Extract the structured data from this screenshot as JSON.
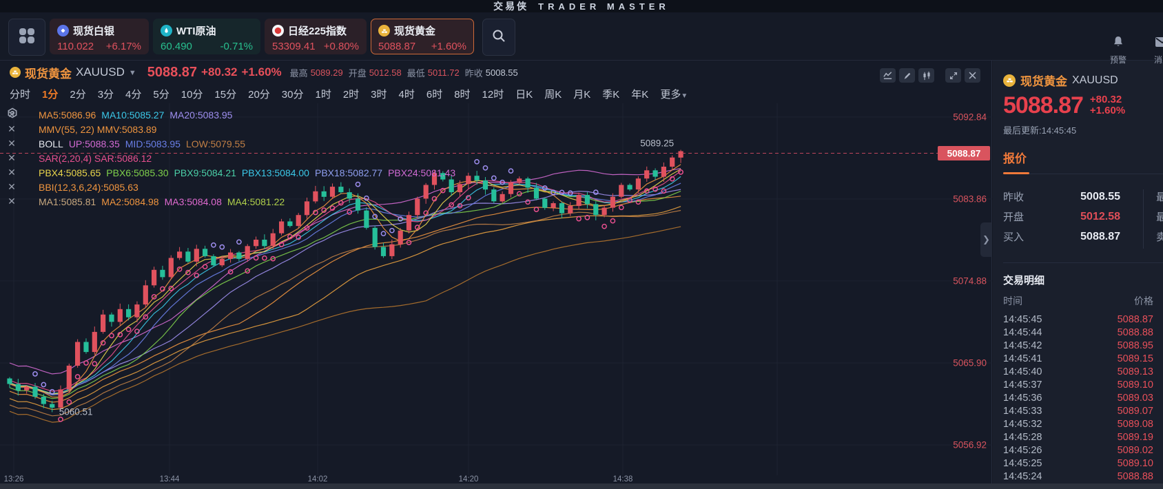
{
  "brand": {
    "name_cn": "交易侠",
    "name_en": "TRADER MASTER"
  },
  "header": {
    "tickers": [
      {
        "name": "现货白银",
        "value": "110.022",
        "change": "+6.17%",
        "dir": "up",
        "icon": "silver-coin-icon",
        "icon_bg": "#5b74e8",
        "card_bg": "#2b2028",
        "selected": false
      },
      {
        "name": "WTI原油",
        "value": "60.490",
        "change": "-0.71%",
        "dir": "down",
        "icon": "oil-drop-icon",
        "icon_bg": "#1fb3c7",
        "card_bg": "#16262b",
        "selected": false
      },
      {
        "name": "日经225指数",
        "value": "53309.41",
        "change": "+0.80%",
        "dir": "up",
        "icon": "japan-flag-icon",
        "icon_bg": "#f5f6f8",
        "card_bg": "#2b2028",
        "selected": false
      },
      {
        "name": "现货黄金",
        "value": "5088.87",
        "change": "+1.60%",
        "dir": "up",
        "icon": "gold-coin-icon",
        "icon_bg": "#e9b33c",
        "card_bg": "#2e2128",
        "selected": true
      }
    ],
    "alerts_label": "预警",
    "messages_label": "消息"
  },
  "chart_header": {
    "symbol": "现货黄金",
    "code": "XAUUSD",
    "price": "5088.87",
    "change": "+80.32",
    "change_pct": "+1.60%",
    "stats": [
      {
        "label": "最高",
        "value": "5089.29",
        "red": true
      },
      {
        "label": "开盘",
        "value": "5012.58",
        "red": true
      },
      {
        "label": "最低",
        "value": "5011.72",
        "red": true
      },
      {
        "label": "昨收",
        "value": "5008.55",
        "red": false
      }
    ]
  },
  "timeframes": {
    "items": [
      "分时",
      "1分",
      "2分",
      "3分",
      "4分",
      "5分",
      "10分",
      "15分",
      "20分",
      "30分",
      "1时",
      "2时",
      "3时",
      "4时",
      "6时",
      "8时",
      "12时",
      "日K",
      "周K",
      "月K",
      "季K",
      "年K"
    ],
    "selected": "1分",
    "more_label": "更多"
  },
  "indicators": [
    {
      "segments": [
        {
          "text": "MA5:5086.96",
          "color": "#f0953f"
        },
        {
          "text": "MA10:5085.27",
          "color": "#3bc8e8"
        },
        {
          "text": "MA20:5083.95",
          "color": "#9f8ff0"
        }
      ]
    },
    {
      "segments": [
        {
          "text": "MMV(55, 22) MMV:5083.89",
          "color": "#f0953f"
        }
      ]
    },
    {
      "segments": [
        {
          "text": "BOLL",
          "color": "#e8eaf0"
        },
        {
          "text": "UP:5088.35",
          "color": "#d36ad3"
        },
        {
          "text": "MID:5083.95",
          "color": "#6a7fe8"
        },
        {
          "text": "LOW:5079.55",
          "color": "#c07f45"
        }
      ]
    },
    {
      "segments": [
        {
          "text": "SAR(2,20,4) SAR:5086.12",
          "color": "#e8508f"
        }
      ]
    },
    {
      "segments": [
        {
          "text": "PBX4:5085.65",
          "color": "#e8d44b"
        },
        {
          "text": "PBX6:5085.30",
          "color": "#7fd04b"
        },
        {
          "text": "PBX9:5084.21",
          "color": "#4bd0a8"
        },
        {
          "text": "PBX13:5084.00",
          "color": "#3bc8e8"
        },
        {
          "text": "PBX18:5082.77",
          "color": "#8f9ff0"
        },
        {
          "text": "PBX24:5081.43",
          "color": "#d06ad3"
        }
      ]
    },
    {
      "segments": [
        {
          "text": "BBI(12,3,6,24):5085.63",
          "color": "#f0953f"
        }
      ]
    },
    {
      "segments": [
        {
          "text": "MA1:5085.81",
          "color": "#c8a87f"
        },
        {
          "text": "MA2:5084.98",
          "color": "#f0953f"
        },
        {
          "text": "MA3:5084.08",
          "color": "#e06ad0"
        },
        {
          "text": "MA4:5081.22",
          "color": "#b0d04b"
        }
      ]
    }
  ],
  "chart_data": {
    "type": "candlestick",
    "title": "现货黄金 XAUUSD 1分",
    "x_labels": [
      "13:26",
      "13:44",
      "14:02",
      "14:20",
      "14:38"
    ],
    "y_axis_labels": [
      "5092.84",
      "5083.86",
      "5074.88",
      "5065.90",
      "5056.92"
    ],
    "y_axis_prices": [
      5092.84,
      5083.86,
      5074.88,
      5065.9,
      5056.92
    ],
    "current_price_label": "5088.87",
    "current_price": 5088.87,
    "annotation_high": {
      "text": "5089.25",
      "price": 5089.25
    },
    "annotation_low": {
      "text": "5060.51",
      "price": 5060.51
    },
    "price_range": {
      "top": 5094.34,
      "bottom": 5053.6
    },
    "first_open": 5064.2,
    "closes": [
      5063.6,
      5062.9,
      5063.3,
      5062.2,
      5061.4,
      5061.0,
      5063.0,
      5065.6,
      5068.2,
      5067.1,
      5069.3,
      5071.2,
      5070.4,
      5071.8,
      5070.9,
      5072.3,
      5074.4,
      5076.1,
      5075.3,
      5077.4,
      5078.1,
      5077.0,
      5078.4,
      5077.6,
      5076.6,
      5077.3,
      5078.0,
      5077.3,
      5078.7,
      5079.4,
      5078.7,
      5080.1,
      5081.4,
      5080.9,
      5082.1,
      5083.6,
      5084.7,
      5084.1,
      5085.2,
      5084.6,
      5083.9,
      5082.6,
      5080.7,
      5078.6,
      5077.6,
      5078.9,
      5080.4,
      5082.1,
      5083.9,
      5085.4,
      5086.7,
      5086.0,
      5084.6,
      5085.5,
      5086.4,
      5085.9,
      5084.9,
      5083.6,
      5084.4,
      5085.7,
      5086.1,
      5085.1,
      5083.9,
      5082.9,
      5083.4,
      5082.3,
      5083.1,
      5084.3,
      5083.3,
      5082.1,
      5082.9,
      5084.1,
      5085.4,
      5084.9,
      5086.1,
      5087.0,
      5086.3,
      5087.4,
      5088.4,
      5089.1
    ],
    "low_override": {
      "5": 5060.51
    },
    "high_override": {
      "79": 5089.25
    },
    "colors": {
      "up": "#e0525e",
      "down": "#26bf9a",
      "axis_label": "#d9545e",
      "badge_bg": "#d9545e",
      "grid": "#1d2331",
      "dashed_line": "#c0455c"
    }
  },
  "sidebar": {
    "symbol": "现货黄金",
    "code": "XAUUSD",
    "price": "5088.87",
    "change": "+80.32",
    "change_pct": "+1.60%",
    "last_update": "最后更新:14:45:45",
    "quote_tab": "报价",
    "quote_left": [
      {
        "label": "昨收",
        "value": "5008.55",
        "red": false
      },
      {
        "label": "开盘",
        "value": "5012.58",
        "red": true
      },
      {
        "label": "买入",
        "value": "5088.87",
        "red": false
      }
    ],
    "quote_right_labels": [
      "最高",
      "最低",
      "卖出"
    ],
    "detail_title": "交易明细",
    "col_time": "时间",
    "col_price": "价格",
    "trades": [
      {
        "time": "14:45:45",
        "price": "5088.87"
      },
      {
        "time": "14:45:44",
        "price": "5088.88"
      },
      {
        "time": "14:45:42",
        "price": "5088.95"
      },
      {
        "time": "14:45:41",
        "price": "5089.15"
      },
      {
        "time": "14:45:40",
        "price": "5089.13"
      },
      {
        "time": "14:45:37",
        "price": "5089.10"
      },
      {
        "time": "14:45:36",
        "price": "5089.03"
      },
      {
        "time": "14:45:33",
        "price": "5089.07"
      },
      {
        "time": "14:45:32",
        "price": "5089.08"
      },
      {
        "time": "14:45:28",
        "price": "5089.19"
      },
      {
        "time": "14:45:26",
        "price": "5089.02"
      },
      {
        "time": "14:45:25",
        "price": "5089.10"
      },
      {
        "time": "14:45:24",
        "price": "5088.88"
      }
    ]
  }
}
